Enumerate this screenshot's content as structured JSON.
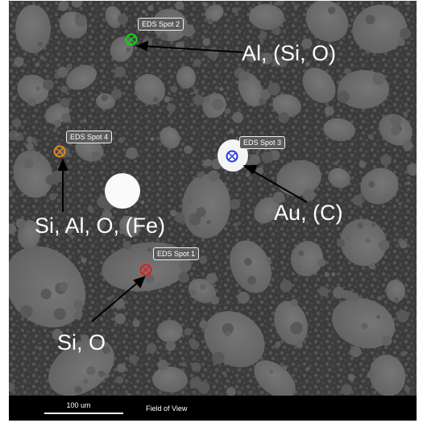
{
  "spots": [
    {
      "label": "EDS Spot 2",
      "color": "#22cc22"
    },
    {
      "label": "EDS Spot 4",
      "color": "#e08a2a"
    },
    {
      "label": "EDS Spot 3",
      "color": "#2a3ad8"
    },
    {
      "label": "EDS Spot 1",
      "color": "#d82020"
    }
  ],
  "annotations": [
    "Al, (Si, O)",
    "Si, Al, O, (Fe)",
    "Au, (C)",
    "Si, O"
  ],
  "scale_bar": {
    "label": "100 um"
  },
  "footer": {
    "field_of_view": "Field of View"
  },
  "colors": {
    "background": "#3a3a3a",
    "particle": "#6b6b6b",
    "arrow": "#000000"
  }
}
